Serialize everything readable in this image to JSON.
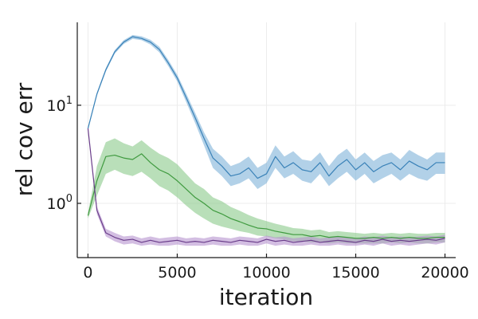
{
  "chart_data": {
    "type": "line",
    "title": "",
    "xlabel": "iteration",
    "ylabel": "rel cov err",
    "xlim": [
      -600,
      20600
    ],
    "ylim": [
      0.28,
      70
    ],
    "yscale": "log",
    "grid": true,
    "legend": "none",
    "x_ticks": [
      0,
      5000,
      10000,
      15000,
      20000
    ],
    "x_tick_labels": [
      "0",
      "5000",
      "10000",
      "15000",
      "20000"
    ],
    "y_ticks": [
      1,
      10
    ],
    "y_tick_labels": [
      {
        "base": "10",
        "exp": "0"
      },
      {
        "base": "10",
        "exp": "1"
      }
    ],
    "series": [
      {
        "color": "#3a82b8",
        "band_color": "#7fb2d8",
        "x": [
          0,
          500,
          1000,
          1500,
          2000,
          2500,
          3000,
          3500,
          4000,
          4500,
          5000,
          5500,
          6000,
          6500,
          7000,
          7500,
          8000,
          8500,
          9000,
          9500,
          10000,
          10500,
          11000,
          11500,
          12000,
          12500,
          13000,
          13500,
          14000,
          14500,
          15000,
          15500,
          16000,
          16500,
          17000,
          17500,
          18000,
          18500,
          19000,
          19500,
          20000
        ],
        "mean": [
          5.8,
          13,
          23,
          35,
          44,
          50,
          48,
          44,
          37,
          27,
          19,
          12,
          7.5,
          4.6,
          2.9,
          2.4,
          1.9,
          2.0,
          2.3,
          1.8,
          2.0,
          3.0,
          2.3,
          2.6,
          2.2,
          2.1,
          2.6,
          1.9,
          2.4,
          2.8,
          2.2,
          2.6,
          2.1,
          2.4,
          2.6,
          2.2,
          2.7,
          2.4,
          2.2,
          2.6,
          2.6
        ],
        "lower": [
          5.6,
          12.5,
          22,
          33.5,
          42,
          47.5,
          46,
          41.5,
          34.5,
          25,
          17.5,
          10.8,
          6.6,
          3.9,
          2.3,
          1.9,
          1.5,
          1.6,
          1.8,
          1.4,
          1.6,
          2.3,
          1.8,
          2.0,
          1.7,
          1.6,
          2.0,
          1.5,
          1.8,
          2.1,
          1.7,
          2.0,
          1.6,
          1.8,
          2.0,
          1.7,
          2.0,
          1.8,
          1.7,
          2.0,
          2.0
        ],
        "upper": [
          6.0,
          13.5,
          24,
          36.5,
          46,
          52,
          50.5,
          46.5,
          39.5,
          29,
          20.5,
          13.2,
          8.4,
          5.3,
          3.6,
          3.0,
          2.4,
          2.6,
          3.0,
          2.3,
          2.6,
          3.9,
          3.0,
          3.4,
          2.8,
          2.7,
          3.3,
          2.4,
          3.1,
          3.6,
          2.8,
          3.3,
          2.7,
          3.1,
          3.3,
          2.8,
          3.5,
          3.1,
          2.8,
          3.3,
          3.3
        ]
      },
      {
        "color": "#3f9a3f",
        "band_color": "#8bc98b",
        "x": [
          0,
          500,
          1000,
          1500,
          2000,
          2500,
          3000,
          3500,
          4000,
          4500,
          5000,
          5500,
          6000,
          6500,
          7000,
          7500,
          8000,
          8500,
          9000,
          9500,
          10000,
          10500,
          11000,
          11500,
          12000,
          12500,
          13000,
          13500,
          14000,
          14500,
          15000,
          15500,
          16000,
          16500,
          17000,
          17500,
          18000,
          18500,
          19000,
          19500,
          20000
        ],
        "mean": [
          0.75,
          1.7,
          3.0,
          3.1,
          2.9,
          2.8,
          3.2,
          2.6,
          2.2,
          2.0,
          1.7,
          1.4,
          1.15,
          1.0,
          0.85,
          0.78,
          0.7,
          0.65,
          0.6,
          0.56,
          0.55,
          0.52,
          0.5,
          0.48,
          0.48,
          0.46,
          0.47,
          0.45,
          0.46,
          0.45,
          0.44,
          0.44,
          0.45,
          0.44,
          0.45,
          0.44,
          0.45,
          0.44,
          0.44,
          0.45,
          0.45
        ],
        "lower": [
          0.7,
          1.2,
          2.0,
          2.2,
          2.0,
          1.9,
          2.1,
          1.8,
          1.5,
          1.35,
          1.15,
          0.95,
          0.8,
          0.7,
          0.62,
          0.58,
          0.55,
          0.52,
          0.5,
          0.47,
          0.46,
          0.44,
          0.43,
          0.41,
          0.41,
          0.4,
          0.4,
          0.39,
          0.4,
          0.39,
          0.39,
          0.39,
          0.39,
          0.39,
          0.4,
          0.39,
          0.4,
          0.39,
          0.39,
          0.4,
          0.4
        ],
        "upper": [
          0.8,
          2.4,
          4.2,
          4.6,
          4.1,
          3.8,
          4.4,
          3.7,
          3.2,
          2.9,
          2.5,
          2.0,
          1.6,
          1.4,
          1.15,
          1.05,
          0.92,
          0.84,
          0.76,
          0.7,
          0.66,
          0.62,
          0.59,
          0.56,
          0.55,
          0.53,
          0.54,
          0.51,
          0.52,
          0.51,
          0.5,
          0.49,
          0.5,
          0.49,
          0.5,
          0.49,
          0.5,
          0.49,
          0.49,
          0.5,
          0.5
        ]
      },
      {
        "color": "#6a3d8a",
        "band_color": "#b592cf",
        "x": [
          0,
          500,
          1000,
          1500,
          2000,
          2500,
          3000,
          3500,
          4000,
          4500,
          5000,
          5500,
          6000,
          6500,
          7000,
          7500,
          8000,
          8500,
          9000,
          9500,
          10000,
          10500,
          11000,
          11500,
          12000,
          12500,
          13000,
          13500,
          14000,
          14500,
          15000,
          15500,
          16000,
          16500,
          17000,
          17500,
          18000,
          18500,
          19000,
          19500,
          20000
        ],
        "mean": [
          5.8,
          0.85,
          0.5,
          0.45,
          0.42,
          0.43,
          0.4,
          0.42,
          0.4,
          0.41,
          0.42,
          0.4,
          0.41,
          0.4,
          0.42,
          0.41,
          0.4,
          0.42,
          0.41,
          0.4,
          0.43,
          0.41,
          0.42,
          0.4,
          0.41,
          0.42,
          0.4,
          0.41,
          0.42,
          0.41,
          0.4,
          0.42,
          0.41,
          0.43,
          0.41,
          0.42,
          0.41,
          0.42,
          0.43,
          0.42,
          0.44
        ],
        "lower": [
          5.6,
          0.78,
          0.46,
          0.41,
          0.38,
          0.39,
          0.37,
          0.38,
          0.37,
          0.37,
          0.38,
          0.37,
          0.37,
          0.37,
          0.38,
          0.37,
          0.37,
          0.38,
          0.37,
          0.37,
          0.39,
          0.37,
          0.38,
          0.37,
          0.37,
          0.38,
          0.37,
          0.37,
          0.38,
          0.37,
          0.37,
          0.38,
          0.37,
          0.39,
          0.37,
          0.38,
          0.37,
          0.38,
          0.39,
          0.38,
          0.4
        ],
        "upper": [
          6.0,
          0.93,
          0.55,
          0.5,
          0.46,
          0.47,
          0.44,
          0.46,
          0.44,
          0.45,
          0.46,
          0.44,
          0.45,
          0.44,
          0.46,
          0.45,
          0.44,
          0.46,
          0.45,
          0.44,
          0.47,
          0.45,
          0.46,
          0.44,
          0.45,
          0.46,
          0.44,
          0.45,
          0.46,
          0.45,
          0.44,
          0.46,
          0.45,
          0.47,
          0.45,
          0.46,
          0.45,
          0.46,
          0.47,
          0.46,
          0.48
        ]
      }
    ]
  }
}
